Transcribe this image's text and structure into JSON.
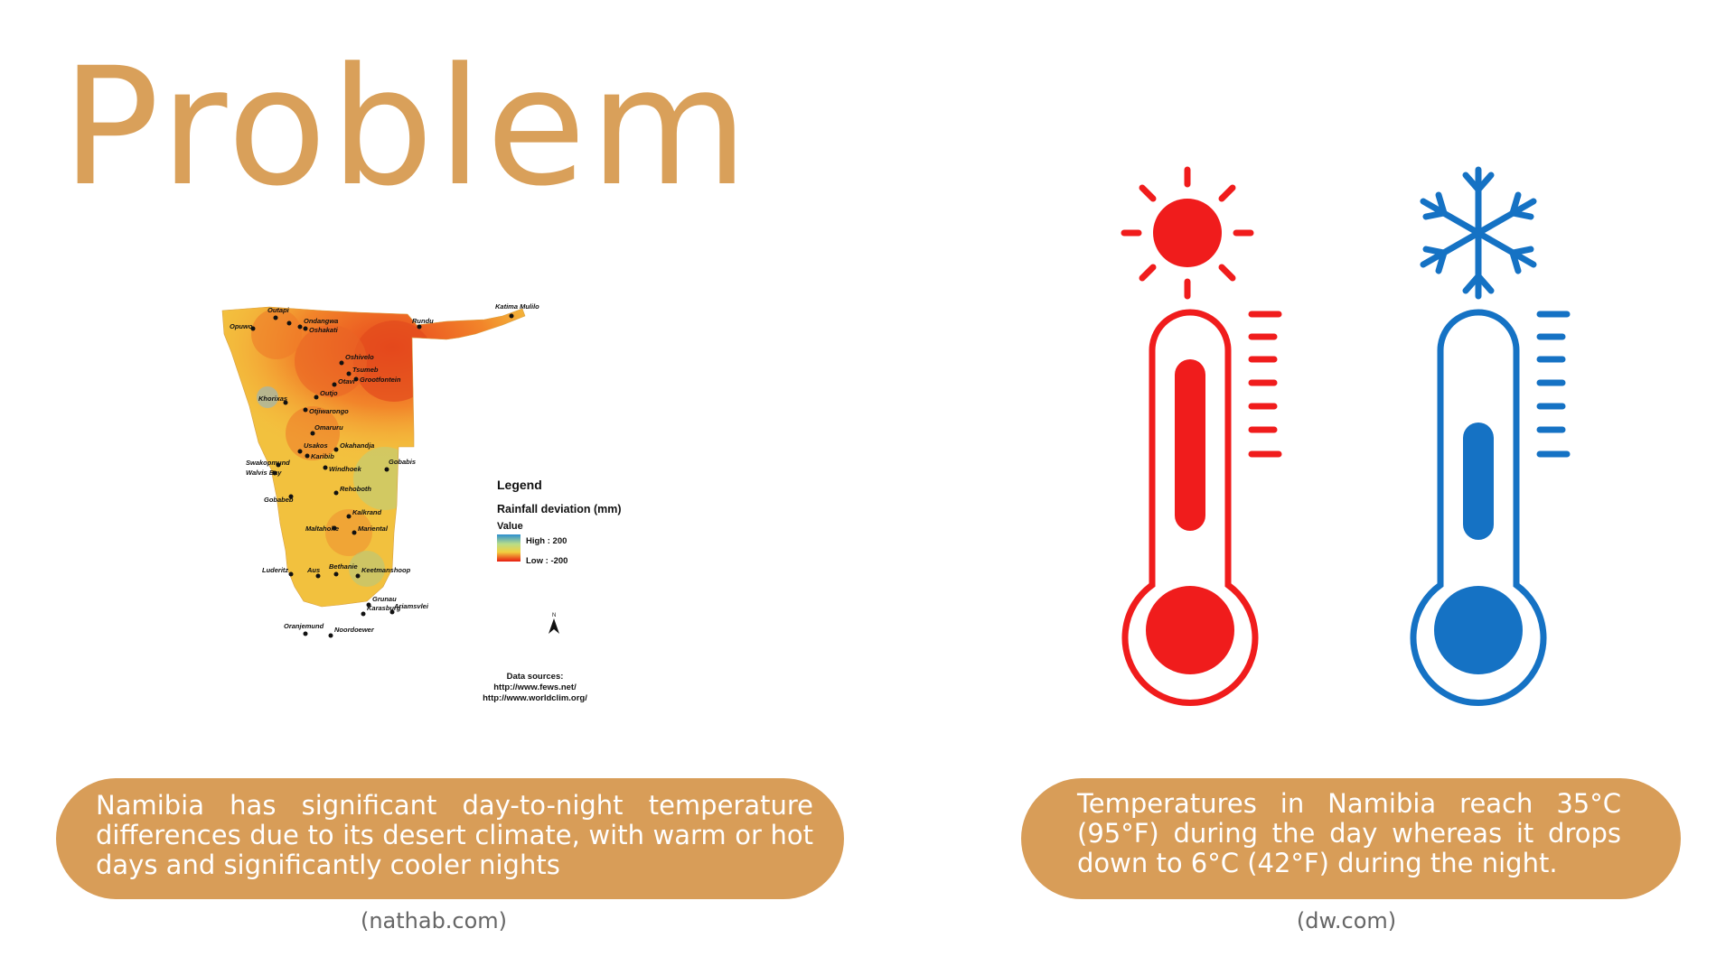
{
  "slide": {
    "title": "Problem",
    "left": {
      "caption": "Namibia has significant day-to-night temperature differences due to its desert climate, with warm or hot days and significantly cooler nights",
      "source": "(nathab.com)"
    },
    "right": {
      "caption": "Temperatures in Namibia reach 35°C (95°F) during the day whereas it drops down to 6°C (42°F) during the night.",
      "source": "(dw.com)"
    },
    "colors": {
      "title": "#d9a05a",
      "pill": "#d89d58",
      "hot": "#f01c1c",
      "cold": "#1572c4"
    }
  },
  "map": {
    "legend_title": "Legend",
    "legend_subtitle": "Rainfall deviation (mm)",
    "legend_value": "Value",
    "legend_high": "High : 200",
    "legend_low": "Low : -200",
    "north_label": "N",
    "sources_title": "Data sources:",
    "source_1": "http://www.fews.net/",
    "source_2": "http://www.worldclim.org/",
    "towns": {
      "outapi": "Outapi",
      "oshakati": "Oshakati",
      "ondangwa": "Ondangwa",
      "opuwo": "Opuwo",
      "rundu": "Rundu",
      "katima": "Katima Mulilo",
      "oshivelo": "Oshivelo",
      "tsumeb": "Tsumeb",
      "grootfontein": "Grootfontein",
      "otavi": "Otavi",
      "outjo": "Outjo",
      "khorixas": "Khorixas",
      "otjiwarongo": "Otjiwarongo",
      "omaruru": "Omaruru",
      "usakos": "Usakos",
      "karibib": "Karibib",
      "okahandja": "Okahandja",
      "swakopmund": "Swakopmund",
      "walvis": "Walvis Bay",
      "windhoek": "Windhoek",
      "gobabis": "Gobabis",
      "rehoboth": "Rehoboth",
      "gobabeb": "Gobabeb",
      "kalkrand": "Kalkrand",
      "maltahohe": "Maltahohe",
      "mariental": "Mariental",
      "luderitz": "Luderitz",
      "aus": "Aus",
      "bethanie": "Bethanie",
      "keetmanshoop": "Keetmanshoop",
      "grunau": "Grunau",
      "karasburg": "Karasburg",
      "ariamsvlei": "Ariamsvlei",
      "oranjemund": "Oranjemund",
      "noordoewer": "Noordoewer"
    }
  },
  "icons": {
    "sun": "sun-icon",
    "snowflake": "snowflake-icon",
    "hot_thermometer": "thermometer-hot-icon",
    "cold_thermometer": "thermometer-cold-icon"
  }
}
